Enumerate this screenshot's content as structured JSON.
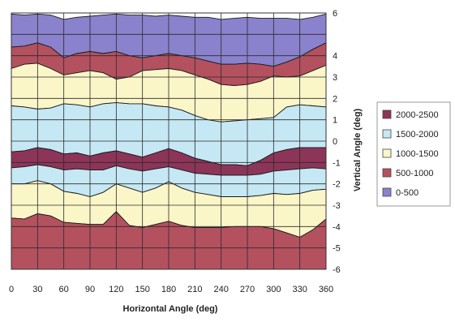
{
  "chart_data": {
    "type": "area",
    "subtype": "contour",
    "title": "",
    "xlabel": "Horizontal Angle (deg)",
    "ylabel": "Vertical Angle (deg)",
    "xlim": [
      0,
      360
    ],
    "ylim": [
      -6,
      6
    ],
    "x_ticks": [
      "0",
      "30",
      "60",
      "90",
      "120",
      "150",
      "180",
      "210",
      "240",
      "270",
      "300",
      "330",
      "360"
    ],
    "y_ticks": [
      "6",
      "4",
      "3",
      "2",
      "1",
      "0",
      "-1",
      "-2",
      "-3",
      "-4",
      "-5",
      "-6"
    ],
    "y_tick_values": [
      6,
      4,
      3,
      2,
      1,
      0,
      -1,
      -2,
      -3,
      -4,
      -5,
      -6
    ],
    "grid": true,
    "legend_position": "right",
    "legend": [
      {
        "label": "2000-2500",
        "color": "#8c3558"
      },
      {
        "label": "1500-2000",
        "color": "#c6e8f4"
      },
      {
        "label": "1000-1500",
        "color": "#fbf6c8"
      },
      {
        "label": "500-1000",
        "color": "#b4515f"
      },
      {
        "label": "0-500",
        "color": "#8a82cc"
      }
    ],
    "x": [
      0,
      15,
      30,
      45,
      60,
      75,
      90,
      105,
      120,
      135,
      150,
      165,
      180,
      195,
      210,
      225,
      240,
      255,
      270,
      285,
      300,
      315,
      330,
      345,
      360
    ],
    "bands": [
      {
        "range": "0-500",
        "color": "#8a82cc",
        "upper": [
          5.95,
          5.9,
          5.95,
          5.9,
          5.7,
          5.8,
          5.85,
          5.9,
          5.95,
          5.9,
          5.9,
          5.85,
          5.9,
          5.85,
          5.8,
          5.8,
          5.7,
          5.75,
          5.8,
          5.75,
          5.75,
          5.75,
          5.7,
          5.8,
          5.95
        ]
      },
      {
        "range": "500-1000",
        "color": "#b4515f",
        "upper": [
          4.4,
          4.45,
          4.6,
          4.4,
          3.9,
          4.1,
          4.2,
          4.1,
          4.2,
          4.0,
          3.9,
          4.0,
          4.1,
          4.0,
          3.9,
          3.75,
          3.6,
          3.6,
          3.65,
          3.6,
          3.5,
          3.7,
          3.95,
          4.3,
          4.6
        ]
      },
      {
        "range": "1000-1500",
        "color": "#fbf6c8",
        "upper": [
          3.4,
          3.6,
          3.65,
          3.4,
          3.1,
          3.2,
          3.3,
          3.2,
          2.9,
          3.0,
          3.3,
          3.35,
          3.4,
          3.3,
          3.1,
          2.9,
          2.65,
          2.6,
          2.65,
          2.8,
          3.05,
          3.0,
          3.05,
          3.3,
          3.55
        ]
      },
      {
        "range": "1500-2000",
        "color": "#c6e8f4",
        "upper": [
          1.65,
          1.6,
          1.5,
          1.55,
          1.75,
          1.7,
          1.6,
          1.75,
          1.8,
          1.75,
          1.75,
          1.65,
          1.6,
          1.45,
          1.2,
          1.0,
          0.9,
          0.95,
          1.0,
          1.05,
          1.1,
          1.6,
          1.7,
          1.65,
          1.6
        ]
      },
      {
        "range": "2000-2500",
        "color": "#8c3558",
        "upper": [
          -0.5,
          -0.45,
          -0.3,
          -0.4,
          -0.6,
          -0.55,
          -0.7,
          -0.55,
          -0.45,
          -0.6,
          -0.75,
          -0.55,
          -0.35,
          -0.55,
          -0.8,
          -0.95,
          -1.1,
          -1.1,
          -1.15,
          -0.9,
          -0.55,
          -0.4,
          -0.3,
          -0.3,
          -0.3
        ]
      },
      {
        "range": "1500-2000",
        "color": "#c6e8f4",
        "upper": [
          -1.25,
          -1.2,
          -1.1,
          -1.2,
          -1.35,
          -1.3,
          -1.35,
          -1.35,
          -1.15,
          -1.3,
          -1.4,
          -1.3,
          -1.2,
          -1.35,
          -1.5,
          -1.55,
          -1.6,
          -1.6,
          -1.6,
          -1.55,
          -1.4,
          -1.35,
          -1.3,
          -1.25,
          -1.3
        ]
      },
      {
        "range": "1000-1500",
        "color": "#fbf6c8",
        "upper": [
          -2.0,
          -2.0,
          -1.85,
          -2.0,
          -2.35,
          -2.45,
          -2.6,
          -2.4,
          -2.0,
          -2.2,
          -2.4,
          -2.2,
          -1.9,
          -2.2,
          -2.4,
          -2.5,
          -2.6,
          -2.6,
          -2.6,
          -2.55,
          -2.45,
          -2.5,
          -2.45,
          -2.3,
          -2.25
        ]
      },
      {
        "range": "500-1000",
        "color": "#b4515f",
        "upper": [
          -3.6,
          -3.65,
          -3.4,
          -3.5,
          -3.8,
          -3.85,
          -3.9,
          -3.9,
          -3.3,
          -3.95,
          -4.05,
          -3.9,
          -3.75,
          -3.95,
          -4.05,
          -4.05,
          -4.05,
          -4.0,
          -4.0,
          -4.0,
          -4.1,
          -4.3,
          -4.5,
          -4.15,
          -3.65
        ]
      },
      {
        "range": "0-500",
        "color": "#8a82cc",
        "upper": [
          -6,
          -6,
          -6,
          -6,
          -6,
          -6,
          -6,
          -6,
          -6,
          -6,
          -6,
          -6,
          -6,
          -6,
          -6,
          -6,
          -6,
          -6,
          -6,
          -6,
          -6,
          -6,
          -6,
          -6,
          -6
        ]
      }
    ]
  }
}
